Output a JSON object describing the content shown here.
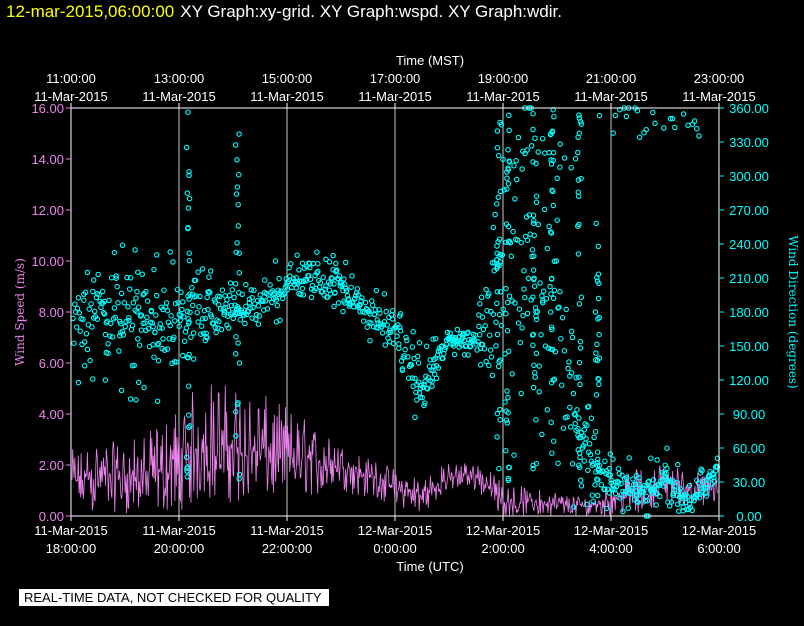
{
  "header": {
    "timestamp": "12-mar-2015,06:00:00",
    "titles": "XY Graph:xy-grid.  XY Graph:wspd.  XY Graph:wdir."
  },
  "disclaimer": "REAL-TIME DATA, NOT CHECKED FOR QUALITY",
  "colors": {
    "background": "#000000",
    "timestamp": "#ffff00",
    "axes": "#ffffff",
    "grid": "#c8c8c8",
    "wind_speed": "#ee82ee",
    "wind_direction": "#00ffff"
  },
  "chart_data": {
    "type": "line",
    "top_axis": {
      "label": "Time (MST)",
      "ticks": [
        {
          "time": "11:00:00",
          "date": "11-Mar-2015"
        },
        {
          "time": "13:00:00",
          "date": "11-Mar-2015"
        },
        {
          "time": "15:00:00",
          "date": "11-Mar-2015"
        },
        {
          "time": "17:00:00",
          "date": "11-Mar-2015"
        },
        {
          "time": "19:00:00",
          "date": "11-Mar-2015"
        },
        {
          "time": "21:00:00",
          "date": "11-Mar-2015"
        },
        {
          "time": "23:00:00",
          "date": "11-Mar-2015"
        }
      ]
    },
    "x_axis": {
      "label": "Time (UTC)",
      "range": [
        "2015-03-11 18:00",
        "2015-03-12 06:00"
      ],
      "grid": true,
      "ticks": [
        {
          "date": "11-Mar-2015",
          "time": "18:00:00"
        },
        {
          "date": "11-Mar-2015",
          "time": "20:00:00"
        },
        {
          "date": "11-Mar-2015",
          "time": "22:00:00"
        },
        {
          "date": "12-Mar-2015",
          "time": "0:00:00"
        },
        {
          "date": "12-Mar-2015",
          "time": "2:00:00"
        },
        {
          "date": "12-Mar-2015",
          "time": "4:00:00"
        },
        {
          "date": "12-Mar-2015",
          "time": "6:00:00"
        }
      ]
    },
    "y_left": {
      "label": "Wind Speed (m/s)",
      "range": [
        0,
        16
      ],
      "ticks": [
        "0.00",
        "2.00",
        "4.00",
        "6.00",
        "8.00",
        "10.00",
        "12.00",
        "14.00",
        "16.00"
      ]
    },
    "y_right": {
      "label": "Wind Direction (degrees)",
      "range": [
        0,
        360
      ],
      "ticks": [
        "0.00",
        "30.00",
        "60.00",
        "90.00",
        "120.00",
        "150.00",
        "180.00",
        "210.00",
        "240.00",
        "270.00",
        "300.00",
        "330.00",
        "360.00"
      ]
    },
    "series": [
      {
        "key": "wspd",
        "style": "line",
        "axis": "left",
        "x": [
          "2015-03-11 18:00",
          "2015-03-11 18:30",
          "2015-03-11 19:00",
          "2015-03-11 19:30",
          "2015-03-11 20:00",
          "2015-03-11 20:30",
          "2015-03-11 21:00",
          "2015-03-11 21:30",
          "2015-03-11 22:00",
          "2015-03-11 22:30",
          "2015-03-11 23:00",
          "2015-03-11 23:30",
          "2015-03-12 00:00",
          "2015-03-12 00:30",
          "2015-03-12 01:00",
          "2015-03-12 01:30",
          "2015-03-12 02:00",
          "2015-03-12 02:30",
          "2015-03-12 03:00",
          "2015-03-12 03:30",
          "2015-03-12 04:00",
          "2015-03-12 04:30",
          "2015-03-12 05:00",
          "2015-03-12 05:30",
          "2015-03-12 06:00"
        ],
        "mean": [
          1.2,
          1.5,
          1.3,
          1.4,
          1.7,
          2.6,
          2.4,
          2.3,
          2.2,
          2.0,
          1.9,
          1.6,
          1.0,
          0.6,
          1.5,
          1.6,
          0.5,
          0.5,
          0.4,
          0.3,
          0.6,
          0.8,
          1.3,
          1.0,
          1.0
        ],
        "max": [
          2.6,
          3.0,
          2.9,
          3.4,
          4.4,
          5.5,
          5.2,
          4.8,
          4.4,
          3.6,
          2.8,
          2.3,
          1.9,
          1.7,
          2.1,
          2.2,
          1.4,
          1.1,
          1.0,
          0.8,
          1.4,
          1.9,
          2.1,
          1.8,
          1.6
        ],
        "min": [
          0.1,
          0.2,
          0.1,
          0.1,
          0.2,
          0.6,
          0.5,
          0.6,
          0.7,
          0.8,
          0.9,
          0.7,
          0.4,
          0.1,
          1.0,
          1.0,
          0.0,
          0.0,
          0.0,
          0.0,
          0.0,
          0.1,
          0.5,
          0.3,
          0.4
        ]
      },
      {
        "key": "wdir",
        "style": "scatter",
        "axis": "right",
        "x": [
          "2015-03-11 18:00",
          "2015-03-11 18:30",
          "2015-03-11 19:00",
          "2015-03-11 19:30",
          "2015-03-11 20:00",
          "2015-03-11 20:30",
          "2015-03-11 21:00",
          "2015-03-11 21:30",
          "2015-03-11 22:00",
          "2015-03-11 22:30",
          "2015-03-11 23:00",
          "2015-03-11 23:30",
          "2015-03-12 00:00",
          "2015-03-12 00:30",
          "2015-03-12 01:00",
          "2015-03-12 01:30",
          "2015-03-12 02:00",
          "2015-03-12 02:30",
          "2015-03-12 03:00",
          "2015-03-12 03:30",
          "2015-03-12 04:00",
          "2015-03-12 04:30",
          "2015-03-12 05:00",
          "2015-03-12 05:30",
          "2015-03-12 06:00"
        ],
        "mean": [
          170,
          185,
          175,
          165,
          170,
          175,
          180,
          185,
          205,
          210,
          205,
          180,
          165,
          110,
          155,
          155,
          210,
          220,
          180,
          60,
          30,
          20,
          30,
          10,
          45
        ],
        "spread": [
          40,
          60,
          55,
          50,
          55,
          40,
          20,
          20,
          25,
          20,
          20,
          20,
          25,
          35,
          10,
          15,
          120,
          130,
          140,
          40,
          25,
          20,
          25,
          15,
          15
        ],
        "high_band": [
          {
            "from": "2015-03-12 02:00",
            "to": "2015-03-12 03:30",
            "value": 320
          },
          {
            "from": "2015-03-12 04:00",
            "to": "2015-03-12 05:40",
            "value": 348
          }
        ]
      }
    ]
  }
}
